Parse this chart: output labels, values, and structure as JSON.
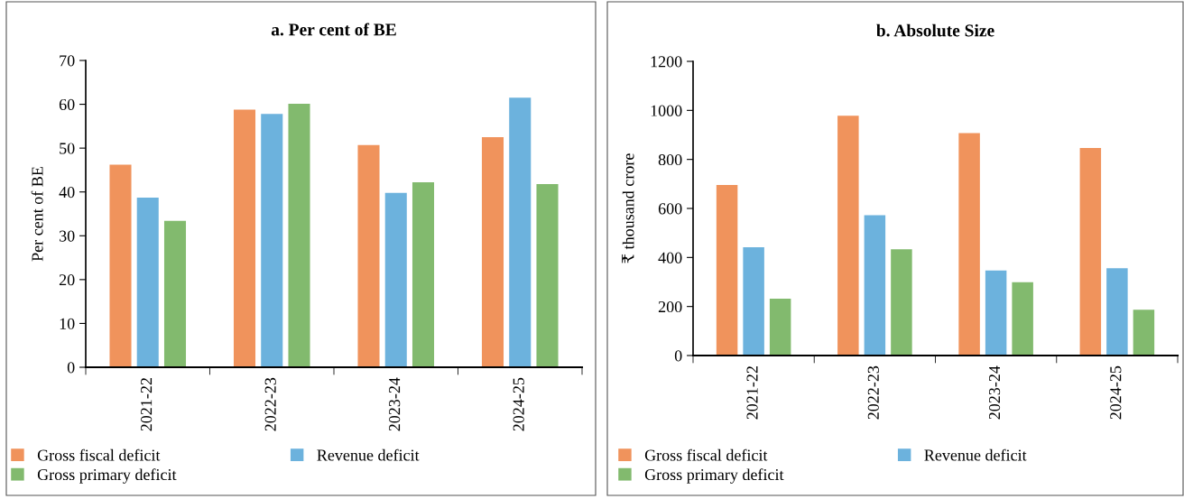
{
  "chart_data": [
    {
      "type": "bar",
      "title": "a. Per cent of BE",
      "ylabel": "Per cent of BE",
      "categories": [
        "2021-22",
        "2022-23",
        "2023-24",
        "2024-25"
      ],
      "series": [
        {
          "name": "Gross fiscal deficit",
          "color": "#f0935c",
          "values": [
            46.2,
            58.8,
            50.7,
            52.5
          ]
        },
        {
          "name": "Revenue deficit",
          "color": "#6cb2dd",
          "values": [
            38.7,
            57.8,
            39.8,
            61.5
          ]
        },
        {
          "name": "Gross primary deficit",
          "color": "#82ba6e",
          "values": [
            33.4,
            60.1,
            42.2,
            41.8
          ]
        }
      ],
      "ylim": [
        0,
        70
      ],
      "yticks": [
        0,
        10,
        20,
        30,
        40,
        50,
        60,
        70
      ],
      "grid": false,
      "legend": "bottom"
    },
    {
      "type": "bar",
      "title": "b. Absolute Size",
      "ylabel": "₹ thousand crore",
      "categories": [
        "2021-22",
        "2022-23",
        "2023-24",
        "2024-25"
      ],
      "series": [
        {
          "name": "Gross fiscal deficit",
          "color": "#f0935c",
          "values": [
            696,
            978,
            907,
            847
          ]
        },
        {
          "name": "Revenue deficit",
          "color": "#6cb2dd",
          "values": [
            442,
            572,
            347,
            356
          ]
        },
        {
          "name": "Gross primary deficit",
          "color": "#82ba6e",
          "values": [
            232,
            433,
            299,
            187
          ]
        }
      ],
      "ylim": [
        0,
        1200
      ],
      "yticks": [
        0,
        200,
        400,
        600,
        800,
        1000,
        1200
      ],
      "grid": false,
      "legend": "bottom"
    }
  ]
}
